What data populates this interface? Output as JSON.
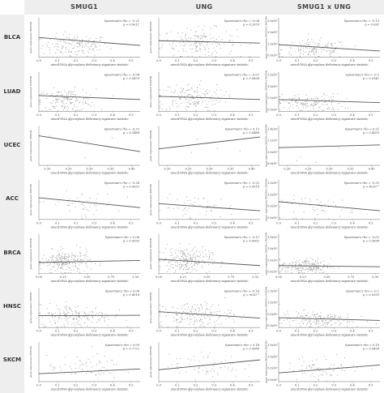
{
  "columns": [
    "SMUG1",
    "UNG",
    "SMUG1 x UNG"
  ],
  "rows": [
    "BLCA",
    "LUAD",
    "UCEC",
    "ACC",
    "BRCA",
    "HNSC",
    "SKCM"
  ],
  "colors": {
    "banner": "#eeeeee",
    "point": "#9a9a9a",
    "line": "#555555",
    "axis": "#888888",
    "text": "#444444"
  },
  "chart_data": [
    {
      "type": "scatter",
      "cancer": "BLCA",
      "gene": "SMUG1",
      "title": "",
      "xlabel": "uracil-DNA glycosylase deficiency signature statistic",
      "ylabel": "gene expression (RSEM)",
      "rho_label": "Spearman's rho = -0.21",
      "p_label": "p = 0.0011",
      "x_ticks": [
        "0.0",
        "0.1",
        "0.2",
        "0.3",
        "0.4",
        "0.5"
      ],
      "xlim": [
        0,
        0.55
      ],
      "y_ticks": [],
      "ylim": [
        0,
        1
      ],
      "n_points": 150,
      "cloud_x": 0.2,
      "cloud_sd": 0.09,
      "cloud_y": 0.3,
      "cloud_ysd": 0.14,
      "fit": [
        [
          0,
          0.5
        ],
        [
          0.55,
          0.3
        ]
      ]
    },
    {
      "type": "scatter",
      "cancer": "BLCA",
      "gene": "UNG",
      "title": "",
      "xlabel": "uracil-DNA glycosylase deficiency signature statistic",
      "ylabel": "gene expression (RSEM)",
      "rho_label": "Spearman's rho = -0.04",
      "p_label": "p = 0.2979",
      "x_ticks": [
        "0.0",
        "0.1",
        "0.2",
        "0.3",
        "0.4",
        "0.5"
      ],
      "xlim": [
        0,
        0.55
      ],
      "y_ticks": [],
      "ylim": [
        0,
        1
      ],
      "n_points": 170,
      "cloud_x": 0.22,
      "cloud_sd": 0.1,
      "cloud_y": 0.38,
      "cloud_ysd": 0.18,
      "fit": [
        [
          0,
          0.42
        ],
        [
          0.55,
          0.36
        ]
      ]
    },
    {
      "type": "scatter",
      "cancer": "BLCA",
      "gene": "SMUG1 x UNG",
      "title": "",
      "xlabel": "uracil-DNA glycosylase deficiency signature statistic",
      "ylabel": "gene expression (RSEM x RSEM)",
      "rho_label": "Spearman's rho = -0.13",
      "p_label": "p = 0.091",
      "x_ticks": [
        "0.0",
        "0.1",
        "0.2",
        "0.3",
        "0.4",
        "0.5"
      ],
      "xlim": [
        0,
        0.55
      ],
      "y_ticks": [
        "0.0x10⁰",
        "1.0x10⁸",
        "2.0x10⁸",
        "3.0x10⁸"
      ],
      "ylim": [
        0,
        1
      ],
      "n_points": 140,
      "cloud_x": 0.2,
      "cloud_sd": 0.09,
      "cloud_y": 0.2,
      "cloud_ysd": 0.12,
      "fit": [
        [
          0,
          0.32
        ],
        [
          0.55,
          0.16
        ]
      ]
    },
    {
      "type": "scatter",
      "cancer": "LUAD",
      "gene": "SMUG1",
      "title": "",
      "xlabel": "uracil-DNA glycosylase deficiency signature statistic",
      "ylabel": "gene expression (RSEM)",
      "rho_label": "Spearman's rho = -0.08",
      "p_label": "p = 0.0479",
      "x_ticks": [
        "0.0",
        "0.1",
        "0.2",
        "0.3",
        "0.4",
        "0.5"
      ],
      "xlim": [
        0,
        0.55
      ],
      "y_ticks": [],
      "ylim": [
        0,
        1
      ],
      "n_points": 160,
      "cloud_x": 0.15,
      "cloud_sd": 0.08,
      "cloud_y": 0.28,
      "cloud_ysd": 0.14,
      "fit": [
        [
          0,
          0.4
        ],
        [
          0.55,
          0.3
        ]
      ]
    },
    {
      "type": "scatter",
      "cancer": "LUAD",
      "gene": "UNG",
      "title": "",
      "xlabel": "uracil-DNA glycosylase deficiency signature statistic",
      "ylabel": "gene expression (RSEM)",
      "rho_label": "Spearman's rho = -0.07",
      "p_label": "p = 0.0834",
      "x_ticks": [
        "0.0",
        "0.1",
        "0.2",
        "0.3",
        "0.4",
        "0.5"
      ],
      "xlim": [
        0,
        0.55
      ],
      "y_ticks": [],
      "ylim": [
        0,
        1
      ],
      "n_points": 170,
      "cloud_x": 0.17,
      "cloud_sd": 0.09,
      "cloud_y": 0.35,
      "cloud_ysd": 0.18,
      "fit": [
        [
          0,
          0.38
        ],
        [
          0.55,
          0.3
        ]
      ]
    },
    {
      "type": "scatter",
      "cancer": "LUAD",
      "gene": "SMUG1 x UNG",
      "title": "",
      "xlabel": "uracil-DNA glycosylase deficiency signature statistic",
      "ylabel": "gene expression (RSEM x RSEM)",
      "rho_label": "Spearman's rho = -0.1",
      "p_label": "p = 0.0142",
      "x_ticks": [
        "0.0",
        "0.1",
        "0.2",
        "0.3",
        "0.4",
        "0.5"
      ],
      "xlim": [
        0,
        0.55
      ],
      "y_ticks": [
        "0.0x10⁰",
        "5.0x10⁸",
        "1.0x10⁹",
        "1.5x10⁹"
      ],
      "ylim": [
        0,
        1
      ],
      "n_points": 150,
      "cloud_x": 0.17,
      "cloud_sd": 0.09,
      "cloud_y": 0.2,
      "cloud_ysd": 0.12,
      "fit": [
        [
          0,
          0.3
        ],
        [
          0.55,
          0.22
        ]
      ]
    },
    {
      "type": "scatter",
      "cancer": "UCEC",
      "gene": "SMUG1",
      "title": "",
      "xlabel": "uracil-DNA glycosylase deficiency signature statistic",
      "ylabel": "gene expression (RSEM)",
      "rho_label": "Spearman's rho = -0.32",
      "p_label": "p = 0.1488",
      "x_ticks": [
        "0.20",
        "0.25",
        "0.30",
        "0.35",
        "0.40"
      ],
      "xlim": [
        0.18,
        0.42
      ],
      "y_ticks": [],
      "ylim": [
        0,
        1
      ],
      "n_points": 4,
      "cloud_x": 0.3,
      "cloud_sd": 0.05,
      "cloud_y": 0.5,
      "cloud_ysd": 0.2,
      "fit": [
        [
          0.18,
          0.75
        ],
        [
          0.42,
          0.35
        ]
      ]
    },
    {
      "type": "scatter",
      "cancer": "UCEC",
      "gene": "UNG",
      "title": "",
      "xlabel": "uracil-DNA glycosylase deficiency signature statistic",
      "ylabel": "gene expression (RSEM)",
      "rho_label": "Spearman's rho = 0.13",
      "p_label": "p = 0.6488",
      "x_ticks": [
        "0.20",
        "0.25",
        "0.30",
        "0.35",
        "0.40"
      ],
      "xlim": [
        0.18,
        0.42
      ],
      "y_ticks": [],
      "ylim": [
        0,
        1
      ],
      "n_points": 4,
      "cloud_x": 0.3,
      "cloud_sd": 0.05,
      "cloud_y": 0.5,
      "cloud_ysd": 0.2,
      "fit": [
        [
          0.18,
          0.42
        ],
        [
          0.42,
          0.72
        ]
      ]
    },
    {
      "type": "scatter",
      "cancer": "UCEC",
      "gene": "SMUG1 x UNG",
      "title": "",
      "xlabel": "uracil-DNA glycosylase deficiency signature statistic",
      "ylabel": "gene expression (RSEM x RSEM)",
      "rho_label": "Spearman's rho = 0.21",
      "p_label": "p = 0.4553",
      "x_ticks": [
        "0.20",
        "0.25",
        "0.30",
        "0.35",
        "0.40"
      ],
      "xlim": [
        0.18,
        0.42
      ],
      "y_ticks": [
        "8.0x10⁷",
        "1.0x10⁸",
        "1.2x10⁸",
        "1.4x10⁸"
      ],
      "ylim": [
        0,
        1
      ],
      "n_points": 4,
      "cloud_x": 0.3,
      "cloud_sd": 0.05,
      "cloud_y": 0.5,
      "cloud_ysd": 0.2,
      "fit": [
        [
          0.18,
          0.45
        ],
        [
          0.42,
          0.52
        ]
      ]
    },
    {
      "type": "scatter",
      "cancer": "ACC",
      "gene": "SMUG1",
      "title": "",
      "xlabel": "uracil-DNA glycosylase deficiency signature statistic",
      "ylabel": "gene expression (RSEM)",
      "rho_label": "Spearman's rho = -0.34",
      "p_label": "p = 0.0052",
      "x_ticks": [
        "0.0",
        "0.1",
        "0.2",
        "0.3",
        "0.4",
        "0.5"
      ],
      "xlim": [
        0,
        0.55
      ],
      "y_ticks": [],
      "ylim": [
        0,
        1
      ],
      "n_points": 50,
      "cloud_x": 0.22,
      "cloud_sd": 0.1,
      "cloud_y": 0.38,
      "cloud_ysd": 0.16,
      "fit": [
        [
          0,
          0.55
        ],
        [
          0.55,
          0.3
        ]
      ]
    },
    {
      "type": "scatter",
      "cancer": "ACC",
      "gene": "UNG",
      "title": "",
      "xlabel": "uracil-DNA glycosylase deficiency signature statistic",
      "ylabel": "gene expression (RSEM)",
      "rho_label": "Spearman's rho = -0.23",
      "p_label": "p = 0.0518",
      "x_ticks": [
        "0.0",
        "0.1",
        "0.2",
        "0.3",
        "0.4",
        "0.5"
      ],
      "xlim": [
        0,
        0.55
      ],
      "y_ticks": [],
      "ylim": [
        0,
        1
      ],
      "n_points": 50,
      "cloud_x": 0.22,
      "cloud_sd": 0.1,
      "cloud_y": 0.3,
      "cloud_ysd": 0.15,
      "fit": [
        [
          0,
          0.4
        ],
        [
          0.55,
          0.22
        ]
      ]
    },
    {
      "type": "scatter",
      "cancer": "ACC",
      "gene": "SMUG1 x UNG",
      "title": "",
      "xlabel": "uracil-DNA glycosylase deficiency signature statistic",
      "ylabel": "gene expression (RSEM x RSEM)",
      "rho_label": "Spearman's rho = -0.33",
      "p_label": "p = 4x10⁻³",
      "x_ticks": [
        "0.0",
        "0.1",
        "0.2",
        "0.3",
        "0.4",
        "0.5"
      ],
      "xlim": [
        0,
        0.55
      ],
      "y_ticks": [
        "0.0x10⁰",
        "5.0x10⁸",
        "1.0x10⁹",
        "1.5x10⁹"
      ],
      "ylim": [
        0,
        1
      ],
      "n_points": 50,
      "cloud_x": 0.22,
      "cloud_sd": 0.1,
      "cloud_y": 0.3,
      "cloud_ysd": 0.15,
      "fit": [
        [
          0,
          0.45
        ],
        [
          0.55,
          0.22
        ]
      ]
    },
    {
      "type": "scatter",
      "cancer": "BRCA",
      "gene": "SMUG1",
      "title": "",
      "xlabel": "uracil-DNA glycosylase deficiency signature statistic",
      "ylabel": "gene expression (RSEM)",
      "rho_label": "Spearman's rho = 0.08",
      "p_label": "p = 0.9393",
      "x_ticks": [
        "0.00",
        "0.25",
        "0.50",
        "0.75",
        "1.00"
      ],
      "xlim": [
        0,
        1.05
      ],
      "y_ticks": [],
      "ylim": [
        0,
        1
      ],
      "n_points": 220,
      "cloud_x": 0.28,
      "cloud_sd": 0.13,
      "cloud_y": 0.3,
      "cloud_ysd": 0.14,
      "fit": [
        [
          0,
          0.28
        ],
        [
          1.05,
          0.33
        ]
      ]
    },
    {
      "type": "scatter",
      "cancer": "BRCA",
      "gene": "UNG",
      "title": "",
      "xlabel": "uracil-DNA glycosylase deficiency signature statistic",
      "ylabel": "gene expression (RSEM)",
      "rho_label": "Spearman's rho = -0.12",
      "p_label": "p = 0.0062",
      "x_ticks": [
        "0.00",
        "0.25",
        "0.50",
        "0.75",
        "1.00"
      ],
      "xlim": [
        0,
        1.05
      ],
      "y_ticks": [],
      "ylim": [
        0,
        1
      ],
      "n_points": 220,
      "cloud_x": 0.28,
      "cloud_sd": 0.13,
      "cloud_y": 0.34,
      "cloud_ysd": 0.16,
      "fit": [
        [
          0,
          0.36
        ],
        [
          1.05,
          0.2
        ]
      ]
    },
    {
      "type": "scatter",
      "cancer": "BRCA",
      "gene": "SMUG1 x UNG",
      "title": "",
      "xlabel": "uracil-DNA glycosylase deficiency signature statistic",
      "ylabel": "gene expression (RSEM x RSEM)",
      "rho_label": "Spearman's rho = -0.02",
      "p_label": "p = 0.5698",
      "x_ticks": [
        "0.00",
        "0.25",
        "0.50",
        "0.75",
        "1.00"
      ],
      "xlim": [
        0,
        1.05
      ],
      "y_ticks": [
        "0.0x10⁰",
        "5.0x10⁸",
        "1.0x10⁹",
        "1.5x10⁹"
      ],
      "ylim": [
        0,
        1
      ],
      "n_points": 200,
      "cloud_x": 0.28,
      "cloud_sd": 0.13,
      "cloud_y": 0.18,
      "cloud_ysd": 0.1,
      "fit": [
        [
          0,
          0.2
        ],
        [
          1.05,
          0.17
        ]
      ]
    },
    {
      "type": "scatter",
      "cancer": "HNSC",
      "gene": "SMUG1",
      "title": "",
      "xlabel": "uracil-DNA glycosylase deficiency signature statistic",
      "ylabel": "gene expression (RSEM)",
      "rho_label": "Spearman's rho = 0.04",
      "p_label": "p = 0.8016",
      "x_ticks": [
        "0.0",
        "0.1",
        "0.2",
        "0.3",
        "0.4",
        "0.5"
      ],
      "xlim": [
        0,
        0.55
      ],
      "y_ticks": [],
      "ylim": [
        0,
        1
      ],
      "n_points": 180,
      "cloud_x": 0.2,
      "cloud_sd": 0.1,
      "cloud_y": 0.3,
      "cloud_ysd": 0.14,
      "fit": [
        [
          0,
          0.3
        ],
        [
          0.55,
          0.31
        ]
      ]
    },
    {
      "type": "scatter",
      "cancer": "HNSC",
      "gene": "UNG",
      "title": "",
      "xlabel": "uracil-DNA glycosylase deficiency signature statistic",
      "ylabel": "gene expression (RSEM)",
      "rho_label": "Spearman's rho = -0.14",
      "p_label": "p = 9x10⁻³",
      "x_ticks": [
        "0.0",
        "0.1",
        "0.2",
        "0.3",
        "0.4",
        "0.5"
      ],
      "xlim": [
        0,
        0.55
      ],
      "y_ticks": [],
      "ylim": [
        0,
        1
      ],
      "n_points": 180,
      "cloud_x": 0.2,
      "cloud_sd": 0.1,
      "cloud_y": 0.32,
      "cloud_ysd": 0.16,
      "fit": [
        [
          0,
          0.4
        ],
        [
          0.55,
          0.24
        ]
      ]
    },
    {
      "type": "scatter",
      "cancer": "HNSC",
      "gene": "SMUG1 x UNG",
      "title": "",
      "xlabel": "uracil-DNA glycosylase deficiency signature statistic",
      "ylabel": "gene expression (RSEM x RSEM)",
      "rho_label": "Spearman's rho = -0.1",
      "p_label": "p = 0.0393",
      "x_ticks": [
        "0.0",
        "0.1",
        "0.2",
        "0.3",
        "0.4",
        "0.5"
      ],
      "xlim": [
        0,
        0.55
      ],
      "y_ticks": [
        "0.0x10⁰",
        "5.0x10⁸",
        "1.0x10⁹",
        "1.5x10⁹"
      ],
      "ylim": [
        0,
        1
      ],
      "n_points": 170,
      "cloud_x": 0.2,
      "cloud_sd": 0.1,
      "cloud_y": 0.2,
      "cloud_ysd": 0.11,
      "fit": [
        [
          0,
          0.25
        ],
        [
          0.55,
          0.18
        ]
      ]
    },
    {
      "type": "scatter",
      "cancer": "SKCM",
      "gene": "SMUG1",
      "title": "",
      "xlabel": "uracil-DNA glycosylase deficiency signature statistic",
      "ylabel": "gene expression (RSEM)",
      "rho_label": "Spearman's rho = 0.09",
      "p_label": "p = 0.7722",
      "x_ticks": [
        "0.0",
        "0.1",
        "0.2",
        "0.3",
        "0.4",
        "0.5"
      ],
      "xlim": [
        0,
        0.55
      ],
      "y_ticks": [],
      "ylim": [
        0,
        1
      ],
      "n_points": 70,
      "cloud_x": 0.25,
      "cloud_sd": 0.1,
      "cloud_y": 0.35,
      "cloud_ysd": 0.15,
      "fit": [
        [
          0,
          0.2
        ],
        [
          0.55,
          0.32
        ]
      ]
    },
    {
      "type": "scatter",
      "cancer": "SKCM",
      "gene": "UNG",
      "title": "",
      "xlabel": "uracil-DNA glycosylase deficiency signature statistic",
      "ylabel": "gene expression (RSEM)",
      "rho_label": "Spearman's rho = 0.18",
      "p_label": "p = 0.9386",
      "x_ticks": [
        "0.0",
        "0.1",
        "0.2",
        "0.3",
        "0.4",
        "0.5"
      ],
      "xlim": [
        0,
        0.55
      ],
      "y_ticks": [],
      "ylim": [
        0,
        1
      ],
      "n_points": 70,
      "cloud_x": 0.25,
      "cloud_sd": 0.1,
      "cloud_y": 0.4,
      "cloud_ysd": 0.16,
      "fit": [
        [
          0,
          0.3
        ],
        [
          0.55,
          0.55
        ]
      ]
    },
    {
      "type": "scatter",
      "cancer": "SKCM",
      "gene": "SMUG1 x UNG",
      "title": "",
      "xlabel": "uracil-DNA glycosylase deficiency signature statistic",
      "ylabel": "gene expression (RSEM x RSEM)",
      "rho_label": "Spearman's rho = 0.19",
      "p_label": "p = 0.9428",
      "x_ticks": [
        "0.0",
        "0.1",
        "0.2",
        "0.3",
        "0.4",
        "0.5"
      ],
      "xlim": [
        0,
        0.55
      ],
      "y_ticks": [
        "0.0x10⁰",
        "5.0x10⁸",
        "1.0x10⁹",
        "1.5x10⁹"
      ],
      "ylim": [
        0,
        1
      ],
      "n_points": 70,
      "cloud_x": 0.25,
      "cloud_sd": 0.1,
      "cloud_y": 0.35,
      "cloud_ysd": 0.15,
      "fit": [
        [
          0,
          0.22
        ],
        [
          0.55,
          0.42
        ]
      ]
    }
  ]
}
